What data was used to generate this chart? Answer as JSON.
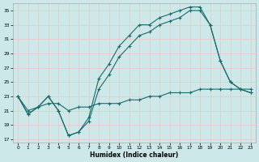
{
  "xlabel": "Humidex (Indice chaleur)",
  "xlim": [
    -0.5,
    23.5
  ],
  "ylim": [
    16.5,
    36.0
  ],
  "yticks": [
    17,
    19,
    21,
    23,
    25,
    27,
    29,
    31,
    33,
    35
  ],
  "xticks": [
    0,
    1,
    2,
    3,
    4,
    5,
    6,
    7,
    8,
    9,
    10,
    11,
    12,
    13,
    14,
    15,
    16,
    17,
    18,
    19,
    20,
    21,
    22,
    23
  ],
  "bg_color": "#cce8e8",
  "grid_color": "#e8c8c8",
  "line_color": "#1a6b6b",
  "curve1_x": [
    0,
    1,
    2,
    3,
    4,
    5,
    6,
    7,
    8,
    9,
    10,
    11,
    12,
    13,
    14,
    15,
    16,
    17,
    18,
    19,
    20,
    21,
    22,
    23
  ],
  "curve1_y": [
    23.0,
    20.5,
    21.5,
    23.0,
    21.0,
    17.5,
    18.0,
    19.5,
    24.0,
    26.0,
    28.5,
    30.0,
    31.5,
    32.0,
    33.0,
    33.5,
    34.0,
    35.0,
    35.0,
    33.0,
    28.0,
    25.0,
    24.0,
    23.5
  ],
  "curve2_x": [
    0,
    1,
    2,
    3,
    4,
    5,
    6,
    7,
    8,
    9,
    10,
    11,
    12,
    13,
    14,
    15,
    16,
    17,
    18,
    19,
    20,
    21,
    22,
    23
  ],
  "curve2_y": [
    23.0,
    20.5,
    21.5,
    23.0,
    21.0,
    17.5,
    18.0,
    20.0,
    25.5,
    27.5,
    30.0,
    31.5,
    33.0,
    33.0,
    34.0,
    34.5,
    35.0,
    35.5,
    35.5,
    33.0,
    28.0,
    25.0,
    24.0,
    23.5
  ],
  "curve3_x": [
    0,
    1,
    2,
    3,
    4,
    5,
    6,
    7,
    8,
    9,
    10,
    11,
    12,
    13,
    14,
    15,
    16,
    17,
    18,
    19,
    20,
    21,
    22,
    23
  ],
  "curve3_y": [
    23.0,
    21.0,
    21.5,
    22.0,
    22.0,
    21.0,
    21.5,
    21.5,
    22.0,
    22.0,
    22.0,
    22.5,
    22.5,
    23.0,
    23.0,
    23.5,
    23.5,
    23.5,
    24.0,
    24.0,
    24.0,
    24.0,
    24.0,
    24.0
  ]
}
